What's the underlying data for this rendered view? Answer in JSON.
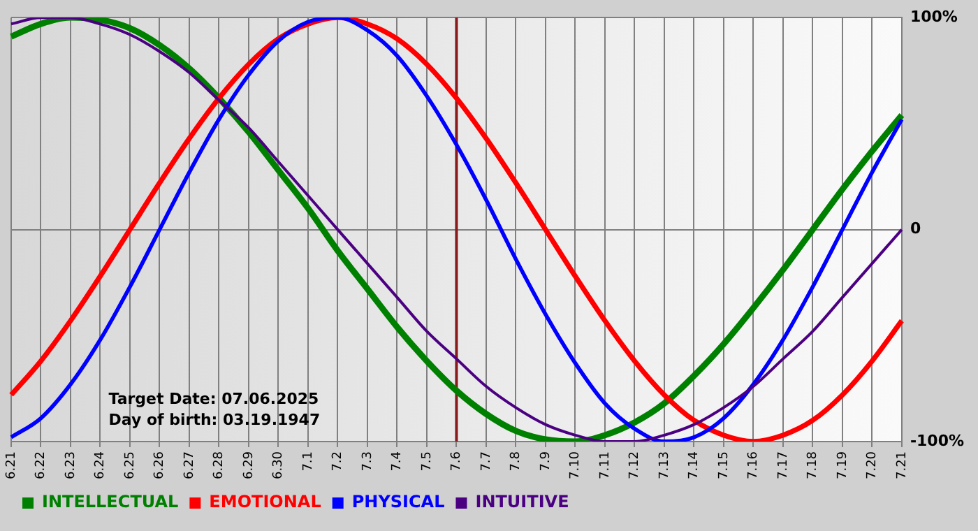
{
  "chart_data": {
    "type": "line",
    "categories": [
      "6.21",
      "6.22",
      "6.23",
      "6.24",
      "6.25",
      "6.26",
      "6.27",
      "6.28",
      "6.29",
      "6.30",
      "7.1",
      "7.2",
      "7.3",
      "7.4",
      "7.5",
      "7.6",
      "7.7",
      "7.8",
      "7.9",
      "7.10",
      "7.11",
      "7.12",
      "7.13",
      "7.14",
      "7.15",
      "7.16",
      "7.17",
      "7.18",
      "7.19",
      "7.20",
      "7.21"
    ],
    "series": [
      {
        "name": "INTELLECTUAL",
        "color": "#008000",
        "values": [
          91,
          97,
          100,
          99,
          95,
          87,
          76,
          62,
          46,
          28,
          10,
          -10,
          -28,
          -46,
          -62,
          -76,
          -87,
          -95,
          -99,
          -100,
          -97,
          -91,
          -82,
          -69,
          -54,
          -37,
          -19,
          0,
          19,
          37,
          54
        ]
      },
      {
        "name": "EMOTIONAL",
        "color": "#ff0000",
        "values": [
          -78,
          -62,
          -43,
          -22,
          0,
          22,
          43,
          62,
          78,
          90,
          97,
          100,
          97,
          90,
          78,
          62,
          43,
          22,
          0,
          -22,
          -43,
          -62,
          -78,
          -90,
          -97,
          -100,
          -97,
          -90,
          -78,
          -62,
          -43
        ]
      },
      {
        "name": "PHYSICAL",
        "color": "#0000ff",
        "values": [
          -98,
          -89,
          -73,
          -52,
          -27,
          0,
          27,
          52,
          73,
          89,
          98,
          100,
          94,
          82,
          63,
          40,
          14,
          -14,
          -40,
          -63,
          -82,
          -94,
          -100,
          -98,
          -89,
          -73,
          -52,
          -27,
          0,
          27,
          52
        ]
      },
      {
        "name": "INTUITIVE",
        "color": "#4b0082",
        "values": [
          97,
          100,
          100,
          97,
          92,
          84,
          74,
          61,
          48,
          32,
          16,
          0,
          -16,
          -32,
          -48,
          -61,
          -74,
          -84,
          -92,
          -97,
          -100,
          -100,
          -97,
          -92,
          -84,
          -74,
          -61,
          -48,
          -32,
          -16,
          0
        ]
      }
    ],
    "ylim": [
      -100,
      100
    ],
    "yticks": [
      {
        "value": -100,
        "label": "-100%"
      },
      0,
      {
        "value": 100,
        "label": "100%"
      }
    ],
    "grid": true,
    "legend": "bottom",
    "marker": "none",
    "line_style": "solid",
    "ref_lines": [
      {
        "axis": "x",
        "value": "7.6",
        "color": "#8b1a1a"
      }
    ],
    "annotations": [
      "Target Date: 07.06.2025",
      "Day of birth: 03.19.1947"
    ]
  }
}
